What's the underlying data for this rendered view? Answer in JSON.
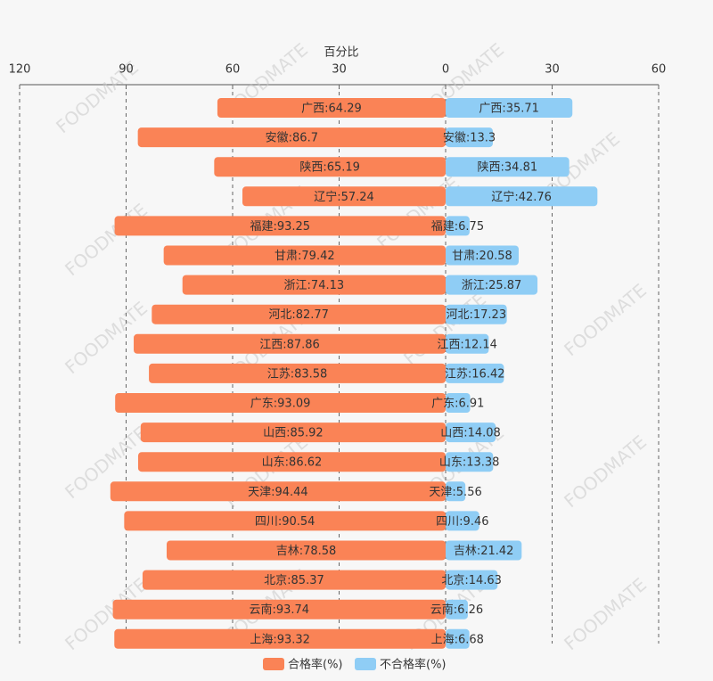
{
  "chart_data": [
    {
      "type": "bar",
      "orientation": "horizontal",
      "x_label": "百分比",
      "xlim": [
        120,
        0
      ],
      "xticks": [
        120,
        90,
        60,
        30,
        0
      ],
      "grid": true,
      "series": [
        {
          "name": "合格率(%)",
          "color": "#fa8356",
          "values": [
            64.29,
            86.7,
            65.19,
            57.24,
            93.25,
            79.42,
            74.13,
            82.77,
            87.86,
            83.58,
            93.09,
            85.92,
            86.62,
            94.44,
            90.54,
            78.58,
            85.37,
            93.74,
            93.32
          ],
          "value_labels": [
            "广西:64.29",
            "安徽:86.7",
            "陕西:65.19",
            "辽宁:57.24",
            "福建:93.25",
            "甘肃:79.42",
            "浙江:74.13",
            "河北:82.77",
            "江西:87.86",
            "江苏:83.58",
            "广东:93.09",
            "山西:85.92",
            "山东:86.62",
            "天津:94.44",
            "四川:90.54",
            "吉林:78.58",
            "北京:85.37",
            "云南:93.74",
            "上海:93.32"
          ]
        }
      ]
    },
    {
      "type": "bar",
      "orientation": "horizontal",
      "xlim": [
        0,
        60
      ],
      "xticks": [
        30,
        60
      ],
      "grid": true,
      "series": [
        {
          "name": "不合格率(%)",
          "color": "#8fcdf5",
          "values": [
            35.71,
            13.3,
            34.81,
            42.76,
            6.75,
            20.58,
            25.87,
            17.23,
            12.14,
            16.42,
            6.91,
            14.08,
            13.38,
            5.56,
            9.46,
            21.42,
            14.63,
            6.26,
            6.68
          ],
          "value_labels": [
            "广西:35.71",
            "安徽:13.3",
            "陕西:34.81",
            "辽宁:42.76",
            "福建:6.75",
            "甘肃:20.58",
            "浙江:25.87",
            "河北:17.23",
            "江西:12.14",
            "江苏:16.42",
            "广东:6.91",
            "山西:14.08",
            "山东:13.38",
            "天津:5.56",
            "四川:9.46",
            "吉林:21.42",
            "北京:14.63",
            "云南:6.26",
            "上海:6.68"
          ]
        }
      ]
    }
  ],
  "watermark": "FOODMATE"
}
